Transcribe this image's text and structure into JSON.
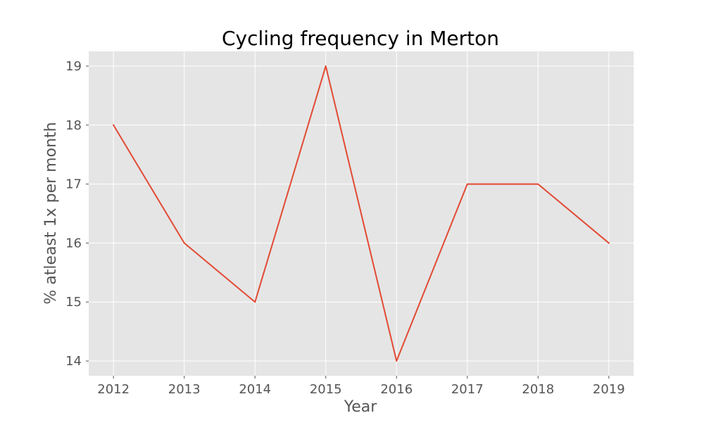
{
  "chart_data": {
    "type": "line",
    "title": "Cycling frequency in Merton",
    "xlabel": "Year",
    "ylabel": "% atleast 1x per month",
    "x": [
      2012,
      2013,
      2014,
      2015,
      2016,
      2017,
      2018,
      2019
    ],
    "series": [
      {
        "values": [
          18,
          16,
          15,
          19,
          14,
          17,
          17,
          16
        ],
        "color": "#E24A33"
      }
    ],
    "xticks": [
      "2012",
      "2013",
      "2014",
      "2015",
      "2016",
      "2017",
      "2018",
      "2019"
    ],
    "yticks": [
      "14",
      "15",
      "16",
      "17",
      "18",
      "19"
    ],
    "xlim": [
      2011.65,
      2019.35
    ],
    "ylim": [
      13.75,
      19.25
    ],
    "grid": true,
    "style": {
      "plot_background": "#E5E5E5",
      "grid_color": "#FFFFFF",
      "tick_label_color": "#555555",
      "title_color": "#000000"
    }
  }
}
